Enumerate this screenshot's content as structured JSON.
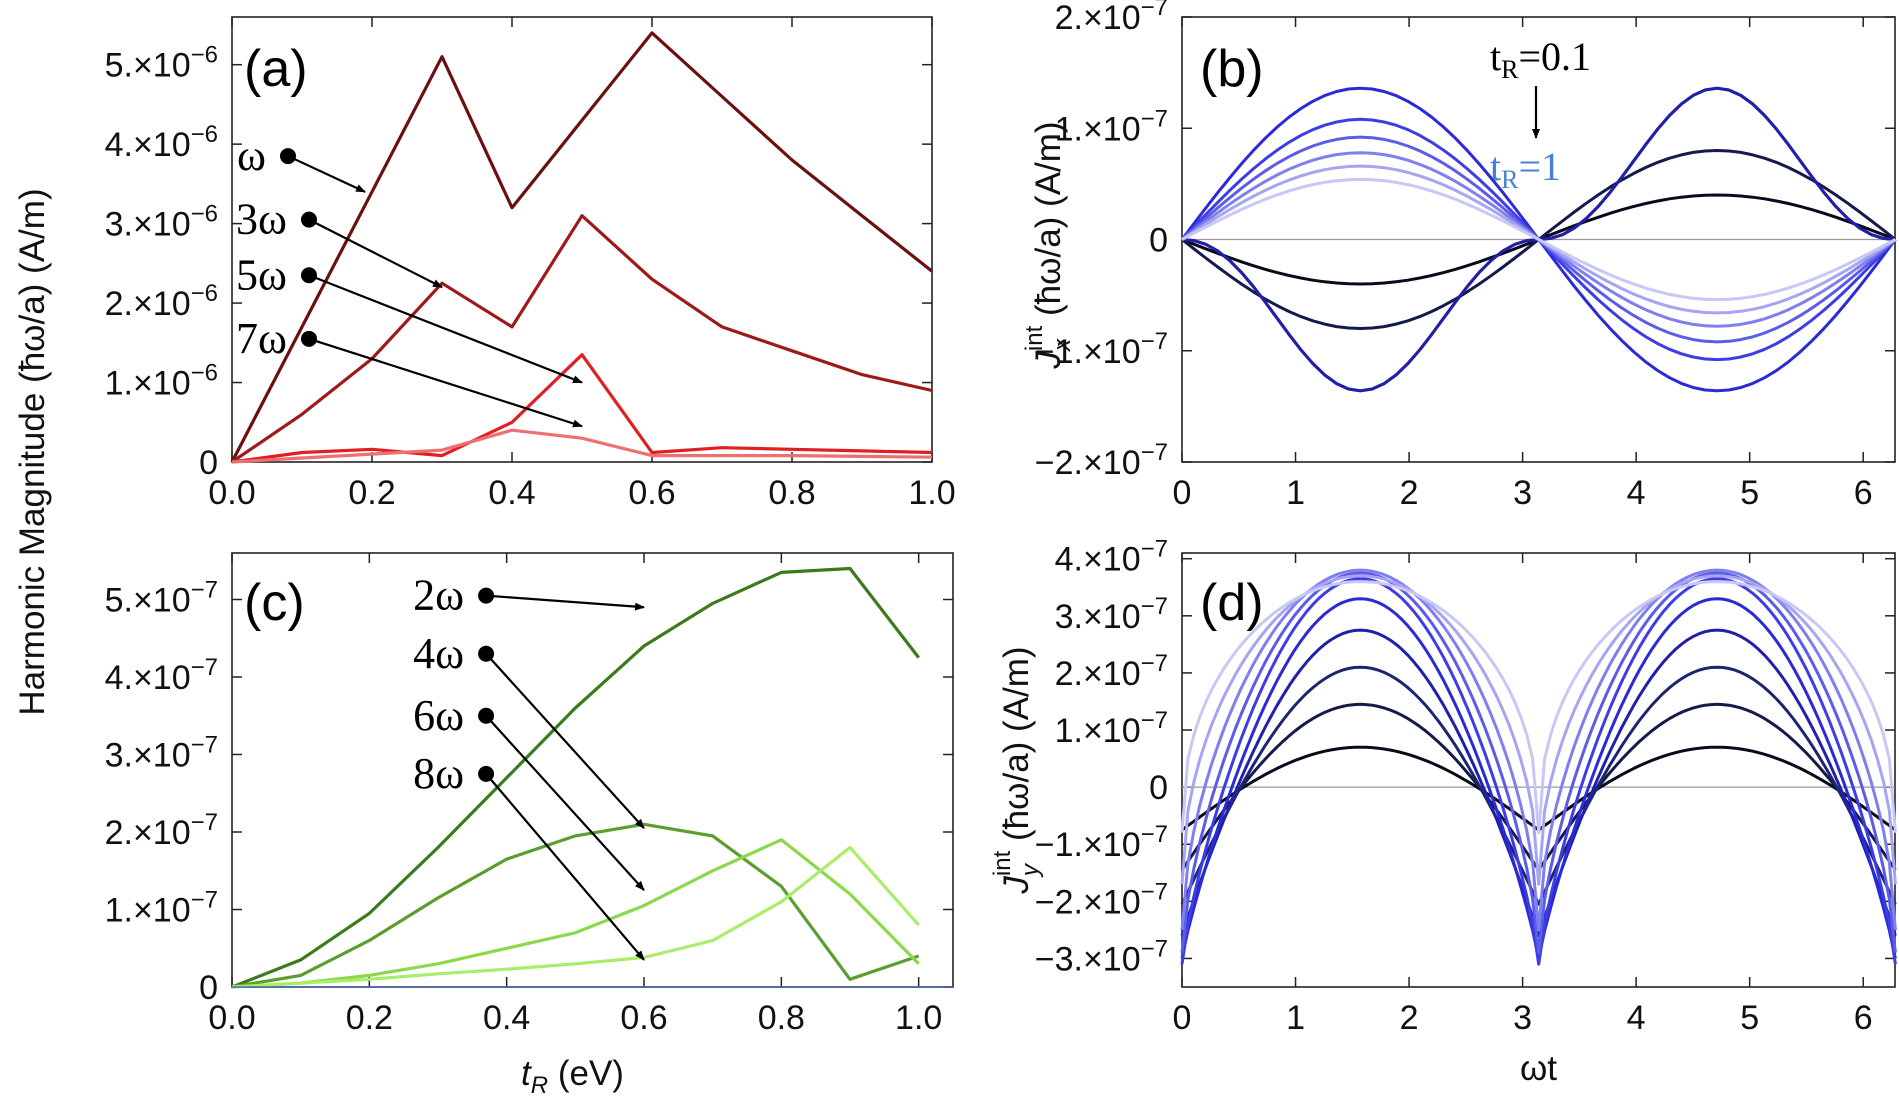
{
  "shared_ylabel": "Harmonic Magnitude (ħω/a) (A/m)",
  "chart_data": [
    {
      "panel": "(a)",
      "type": "line",
      "title": "",
      "xlabel": "",
      "ylabel": "",
      "xlim": [
        0,
        1
      ],
      "ylim": [
        0,
        5.6e-06
      ],
      "xticks": [
        "0.0",
        "0.2",
        "0.4",
        "0.6",
        "0.8",
        "1.0"
      ],
      "yticks": [
        {
          "value": 0,
          "mant": "0",
          "exp": ""
        },
        {
          "value": 1e-06,
          "mant": "1.×10",
          "exp": "−6"
        },
        {
          "value": 2e-06,
          "mant": "2.×10",
          "exp": "−6"
        },
        {
          "value": 3e-06,
          "mant": "3.×10",
          "exp": "−6"
        },
        {
          "value": 4e-06,
          "mant": "4.×10",
          "exp": "−6"
        },
        {
          "value": 5e-06,
          "mant": "5.×10",
          "exp": "−6"
        }
      ],
      "x": [
        0,
        0.1,
        0.2,
        0.3,
        0.4,
        0.5,
        0.6,
        0.7,
        0.8,
        0.9,
        1.0
      ],
      "series": [
        {
          "name": "ω",
          "color": "#6b0f0f",
          "values": [
            0,
            1.7e-06,
            3.4e-06,
            5.1e-06,
            3.2e-06,
            4.3e-06,
            5.4e-06,
            4.6e-06,
            3.8e-06,
            3.1e-06,
            2.4e-06
          ]
        },
        {
          "name": "3ω",
          "color": "#9e1a1a",
          "values": [
            0,
            6e-07,
            1.3e-06,
            2.25e-06,
            1.7e-06,
            3.1e-06,
            2.3e-06,
            1.7e-06,
            1.4e-06,
            1.1e-06,
            9e-07
          ]
        },
        {
          "name": "5ω",
          "color": "#e02020",
          "values": [
            0,
            1.2e-07,
            1.6e-07,
            8e-08,
            5e-07,
            1.35e-06,
            1.2e-07,
            1.8e-07,
            1.6e-07,
            1.4e-07,
            1.2e-07
          ]
        },
        {
          "name": "7ω",
          "color": "#ec7070",
          "values": [
            0,
            5e-08,
            1e-07,
            1.5e-07,
            4e-07,
            3e-07,
            8e-08,
            8e-08,
            8e-08,
            7e-08,
            6e-08
          ]
        }
      ],
      "annotations": [
        {
          "label": "ω",
          "dot": [
            0.08,
            3.85e-06
          ],
          "arrow_to": [
            0.19,
            3.4e-06
          ]
        },
        {
          "label": "3ω",
          "dot": [
            0.11,
            3.05e-06
          ],
          "arrow_to": [
            0.3,
            2.2e-06
          ]
        },
        {
          "label": "5ω",
          "dot": [
            0.11,
            2.35e-06
          ],
          "arrow_to": [
            0.5,
            1e-06
          ]
        },
        {
          "label": "7ω",
          "dot": [
            0.11,
            1.55e-06
          ],
          "arrow_to": [
            0.5,
            4.5e-07
          ]
        }
      ]
    },
    {
      "panel": "(b)",
      "type": "line",
      "title": "",
      "xlabel": "",
      "ylabel": "J_x^int (ħω/a) (A/m)",
      "xlim": [
        0,
        6.28
      ],
      "ylim": [
        -2e-07,
        2e-07
      ],
      "xticks": [
        "0",
        "1",
        "2",
        "3",
        "4",
        "5",
        "6"
      ],
      "yticks": [
        {
          "value": 2e-07,
          "mant": "2.×10",
          "exp": "−7"
        },
        {
          "value": 1e-07,
          "mant": "1.×10",
          "exp": "−7"
        },
        {
          "value": 0,
          "mant": "0",
          "exp": ""
        },
        {
          "value": -1e-07,
          "mant": "−1.×10",
          "exp": "−7"
        },
        {
          "value": -2e-07,
          "mant": "−2.×10",
          "exp": "−7"
        }
      ],
      "t_R_values": [
        0.1,
        0.2,
        0.3,
        0.4,
        0.5,
        0.6,
        0.7,
        0.8,
        0.9,
        1.0
      ],
      "amplitudes": [
        -4e-08,
        -8e-08,
        -1.36e-07,
        -1.36e-07,
        1.36e-07,
        1.08e-07,
        9.2e-08,
        7.8e-08,
        6.6e-08,
        5.4e-08
      ],
      "colors": [
        "#0a0a1a",
        "#141a4a",
        "#1c2670",
        "#2020aa",
        "#2a2ad6",
        "#3d3de6",
        "#5c5ce8",
        "#7f7fee",
        "#a5a5f2",
        "#c8c8f7"
      ],
      "annotation_top": "t_R=0.1",
      "annotation_bottom": "t_R=1"
    },
    {
      "panel": "(c)",
      "type": "line",
      "title": "",
      "xlabel": "t_R (eV)",
      "ylabel": "",
      "xlim": [
        0,
        1.05
      ],
      "ylim": [
        0,
        5.6e-07
      ],
      "xticks": [
        "0.0",
        "0.2",
        "0.4",
        "0.6",
        "0.8",
        "1.0"
      ],
      "yticks": [
        {
          "value": 0,
          "mant": "0",
          "exp": ""
        },
        {
          "value": 1e-07,
          "mant": "1.×10",
          "exp": "−7"
        },
        {
          "value": 2e-07,
          "mant": "2.×10",
          "exp": "−7"
        },
        {
          "value": 3e-07,
          "mant": "3.×10",
          "exp": "−7"
        },
        {
          "value": 4e-07,
          "mant": "4.×10",
          "exp": "−7"
        },
        {
          "value": 5e-07,
          "mant": "5.×10",
          "exp": "−7"
        }
      ],
      "x": [
        0,
        0.1,
        0.2,
        0.3,
        0.4,
        0.5,
        0.6,
        0.7,
        0.8,
        0.9,
        1.0
      ],
      "series": [
        {
          "name": "2ω",
          "color": "#3d7a1a",
          "values": [
            0,
            3.5e-08,
            9.5e-08,
            1.8e-07,
            2.7e-07,
            3.6e-07,
            4.4e-07,
            4.95e-07,
            5.35e-07,
            5.4e-07,
            4.25e-07
          ]
        },
        {
          "name": "4ω",
          "color": "#5a9e2e",
          "values": [
            0,
            1.5e-08,
            6e-08,
            1.15e-07,
            1.65e-07,
            1.95e-07,
            2.1e-07,
            1.95e-07,
            1.3e-07,
            1e-08,
            4e-08
          ]
        },
        {
          "name": "6ω",
          "color": "#8ad94a",
          "values": [
            0,
            5e-09,
            1.5e-08,
            3e-08,
            5e-08,
            7e-08,
            1.05e-07,
            1.5e-07,
            1.9e-07,
            1.2e-07,
            3e-08
          ]
        },
        {
          "name": "8ω",
          "color": "#a8ee6a",
          "values": [
            0,
            5e-09,
            1e-08,
            1.7e-08,
            2.3e-08,
            3e-08,
            3.8e-08,
            6e-08,
            1.1e-07,
            1.8e-07,
            8e-08
          ]
        }
      ],
      "annotations": [
        {
          "label": "2ω",
          "dot": [
            0.37,
            5.05e-07
          ],
          "arrow_to": [
            0.6,
            4.9e-07
          ]
        },
        {
          "label": "4ω",
          "dot": [
            0.37,
            4.3e-07
          ],
          "arrow_to": [
            0.6,
            2.05e-07
          ]
        },
        {
          "label": "6ω",
          "dot": [
            0.37,
            3.5e-07
          ],
          "arrow_to": [
            0.6,
            1.25e-07
          ]
        },
        {
          "label": "8ω",
          "dot": [
            0.37,
            2.75e-07
          ],
          "arrow_to": [
            0.6,
            3.5e-08
          ]
        }
      ]
    },
    {
      "panel": "(d)",
      "type": "line",
      "title": "",
      "xlabel": "ωt",
      "ylabel": "J_y^int (ħω/a) (A/m)",
      "xlim": [
        0,
        6.28
      ],
      "ylim": [
        -3.5e-07,
        4.1e-07
      ],
      "xticks": [
        "0",
        "1",
        "2",
        "3",
        "4",
        "5",
        "6"
      ],
      "yticks": [
        {
          "value": 4e-07,
          "mant": "4.×10",
          "exp": "−7"
        },
        {
          "value": 3e-07,
          "mant": "3.×10",
          "exp": "−7"
        },
        {
          "value": 2e-07,
          "mant": "2.×10",
          "exp": "−7"
        },
        {
          "value": 1e-07,
          "mant": "1.×10",
          "exp": "−7"
        },
        {
          "value": 0,
          "mant": "0",
          "exp": ""
        },
        {
          "value": -1e-07,
          "mant": "−1.×10",
          "exp": "−7"
        },
        {
          "value": -2e-07,
          "mant": "−2.×10",
          "exp": "−7"
        },
        {
          "value": -3e-07,
          "mant": "−3.×10",
          "exp": "−7"
        }
      ],
      "peaks": [
        7e-08,
        1.45e-07,
        2.1e-07,
        2.75e-07,
        3.3e-07,
        3.65e-07,
        3.75e-07,
        3.8e-07,
        3.7e-07,
        3.6e-07
      ],
      "minima": [
        -7.5e-08,
        -1.45e-07,
        -2.05e-07,
        -2.6e-07,
        -3e-07,
        -3.1e-07,
        -2.9e-07,
        -2.5e-07,
        -1.7e-07,
        -8e-08
      ],
      "sharpness": [
        1.0,
        1.0,
        1.0,
        1.05,
        1.15,
        1.3,
        1.5,
        1.75,
        2.05,
        2.4
      ],
      "colors": [
        "#0a0a1a",
        "#141a4a",
        "#1c2670",
        "#2020aa",
        "#2a2ad6",
        "#3d3de6",
        "#5c5ce8",
        "#7f7fee",
        "#a5a5f2",
        "#c8c8f7"
      ]
    }
  ]
}
